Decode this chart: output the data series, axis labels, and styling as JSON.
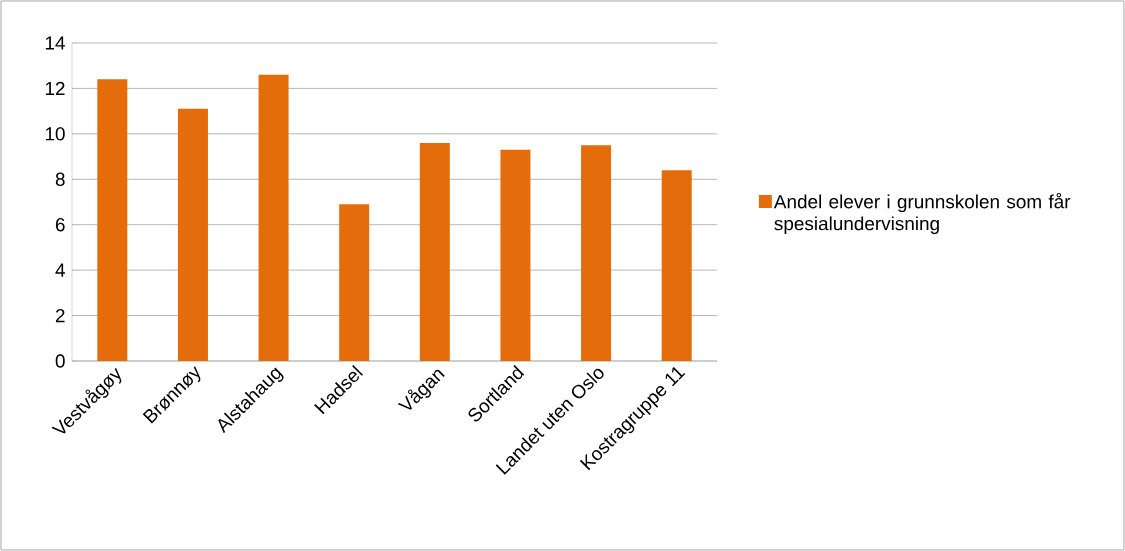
{
  "chart_data": {
    "type": "bar",
    "categories": [
      "Vestvågøy",
      "Brønnøy",
      "Alstahaug",
      "Hadsel",
      "Vågan",
      "Sortland",
      "Landet uten Oslo",
      "Kostragruppe 11"
    ],
    "series": [
      {
        "name": "Andel elever i grunnskolen som får spesialundervisning",
        "color": "#e46c0a",
        "values": [
          12.4,
          11.1,
          12.6,
          6.9,
          9.6,
          9.3,
          9.5,
          8.4
        ]
      }
    ],
    "ylim": [
      0,
      14
    ],
    "yticks": [
      0,
      2,
      4,
      6,
      8,
      10,
      12,
      14
    ],
    "grid": "y",
    "legend": "right"
  }
}
